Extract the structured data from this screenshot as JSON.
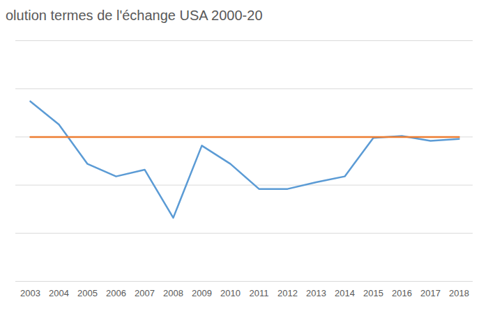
{
  "chart_data": {
    "type": "line",
    "title": "olution termes de l'échange USA 2000-20",
    "categories": [
      "2003",
      "2004",
      "2005",
      "2006",
      "2007",
      "2008",
      "2009",
      "2010",
      "2011",
      "2012",
      "2013",
      "2014",
      "2015",
      "2016",
      "2017",
      "2018"
    ],
    "series": [
      {
        "color": "#5b9bd5",
        "values": [
          103.7,
          101.3,
          97.2,
          95.9,
          96.6,
          91.6,
          99.1,
          97.2,
          94.6,
          94.6,
          95.3,
          95.9,
          99.9,
          100.1,
          99.6,
          99.8
        ]
      },
      {
        "color": "#ed7d31",
        "values": [
          100,
          100,
          100,
          100,
          100,
          100,
          100,
          100,
          100,
          100,
          100,
          100,
          100,
          100,
          100,
          100
        ]
      }
    ],
    "ylim": [
      85,
      110
    ],
    "yticks": [
      85,
      90,
      95,
      100,
      105,
      110
    ],
    "grid": true,
    "tick_labels": "x"
  }
}
